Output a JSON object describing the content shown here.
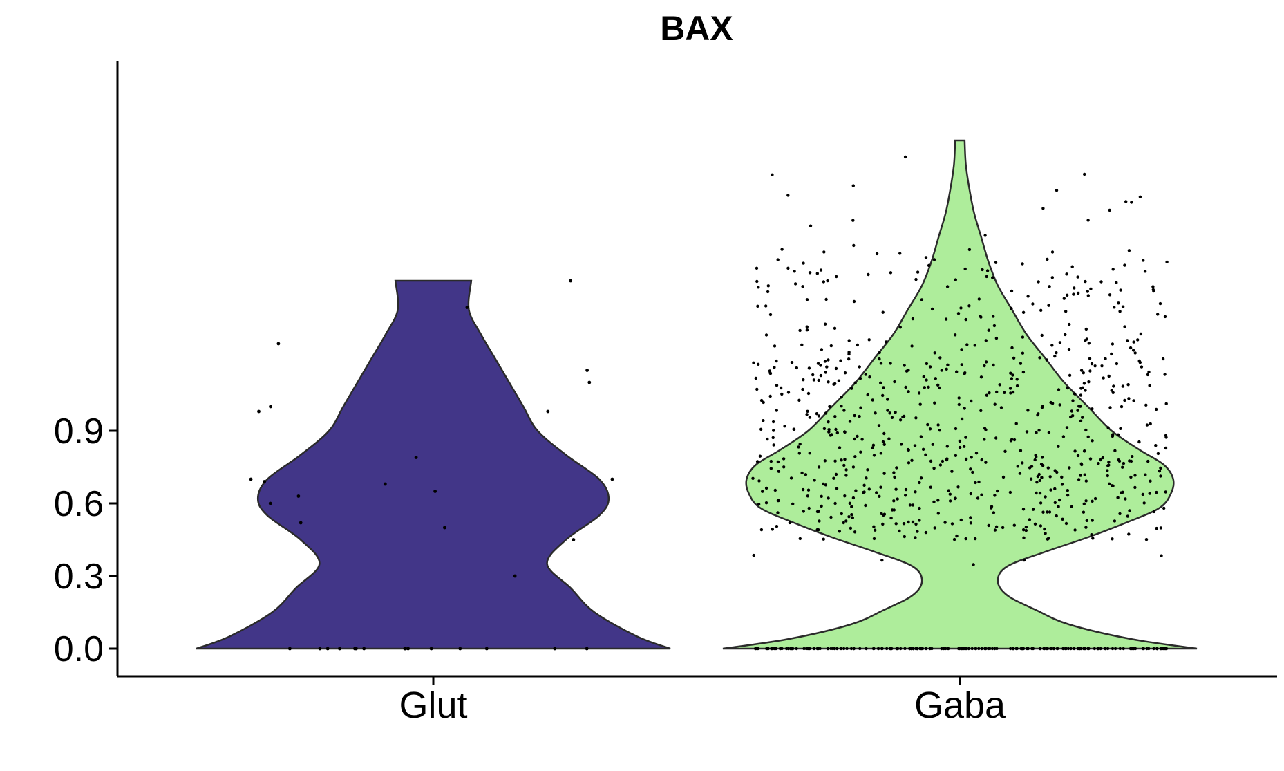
{
  "chart_data": {
    "type": "violin",
    "title": "BAX",
    "xlabel": "",
    "ylabel": "",
    "ylim": [
      -0.1,
      2.2
    ],
    "yticks": [
      0.0,
      0.3,
      0.6,
      0.9
    ],
    "ytick_labels": [
      "0.0",
      "0.3",
      "0.6",
      "0.9"
    ],
    "grid": false,
    "legend": "none",
    "categories": [
      "Glut",
      "Gaba"
    ],
    "series": [
      {
        "category": "Glut",
        "color": "#423688",
        "max_value": 1.52,
        "density_profile": [
          [
            0.0,
            1.0
          ],
          [
            0.05,
            0.86
          ],
          [
            0.15,
            0.68
          ],
          [
            0.25,
            0.58
          ],
          [
            0.35,
            0.48
          ],
          [
            0.45,
            0.56
          ],
          [
            0.55,
            0.7
          ],
          [
            0.62,
            0.74
          ],
          [
            0.7,
            0.7
          ],
          [
            0.8,
            0.56
          ],
          [
            0.9,
            0.44
          ],
          [
            1.0,
            0.38
          ],
          [
            1.1,
            0.32
          ],
          [
            1.2,
            0.26
          ],
          [
            1.3,
            0.2
          ],
          [
            1.4,
            0.15
          ],
          [
            1.52,
            0.16
          ]
        ],
        "points": [
          [
            0.0,
            0.0
          ],
          [
            0.0,
            0.0
          ],
          [
            0.0,
            0.0
          ],
          [
            0.0,
            0.0
          ],
          [
            0.0,
            0.0
          ],
          [
            0.0,
            0.0
          ],
          [
            0.0,
            0.0
          ],
          [
            0.0,
            0.0
          ],
          [
            0.0,
            0.0
          ],
          [
            0.0,
            0.0
          ],
          [
            0.0,
            0.0
          ],
          [
            0.0,
            0.0
          ],
          [
            0.0,
            0.0
          ],
          [
            0.0,
            0.0
          ],
          [
            0.0,
            0.0
          ],
          [
            0.3,
            0.0
          ],
          [
            0.52,
            0.0
          ],
          [
            0.6,
            0.0
          ],
          [
            0.63,
            0.0
          ],
          [
            0.65,
            0.0
          ],
          [
            0.68,
            0.0
          ],
          [
            0.69,
            0.0
          ],
          [
            0.7,
            0.0
          ],
          [
            0.7,
            0.0
          ],
          [
            0.79,
            0.0
          ],
          [
            0.98,
            0.0
          ],
          [
            0.98,
            0.0
          ],
          [
            1.0,
            0.0
          ],
          [
            1.1,
            0.0
          ],
          [
            1.15,
            0.0
          ],
          [
            1.26,
            0.0
          ],
          [
            1.41,
            0.0
          ],
          [
            1.52,
            0.0
          ],
          [
            0.45,
            0.0
          ],
          [
            0.5,
            0.0
          ]
        ]
      },
      {
        "category": "Gaba",
        "color": "#aeed9b",
        "max_value": 2.1,
        "density_profile": [
          [
            0.0,
            1.0
          ],
          [
            0.04,
            0.72
          ],
          [
            0.1,
            0.46
          ],
          [
            0.16,
            0.32
          ],
          [
            0.22,
            0.2
          ],
          [
            0.28,
            0.16
          ],
          [
            0.34,
            0.2
          ],
          [
            0.4,
            0.36
          ],
          [
            0.46,
            0.54
          ],
          [
            0.52,
            0.7
          ],
          [
            0.58,
            0.84
          ],
          [
            0.64,
            0.89
          ],
          [
            0.7,
            0.9
          ],
          [
            0.76,
            0.86
          ],
          [
            0.82,
            0.76
          ],
          [
            0.9,
            0.64
          ],
          [
            1.0,
            0.54
          ],
          [
            1.1,
            0.44
          ],
          [
            1.2,
            0.36
          ],
          [
            1.3,
            0.28
          ],
          [
            1.4,
            0.22
          ],
          [
            1.5,
            0.16
          ],
          [
            1.6,
            0.12
          ],
          [
            1.7,
            0.09
          ],
          [
            1.8,
            0.06
          ],
          [
            1.9,
            0.04
          ],
          [
            2.0,
            0.025
          ],
          [
            2.1,
            0.02
          ]
        ],
        "points_note": "dense jitter cloud; values between 0.0 and 2.1 with heavy mass at 0.0 and 0.5–1.2",
        "points_seed": 17,
        "points_count_zero": 180,
        "points_count_positive": 760
      }
    ]
  }
}
